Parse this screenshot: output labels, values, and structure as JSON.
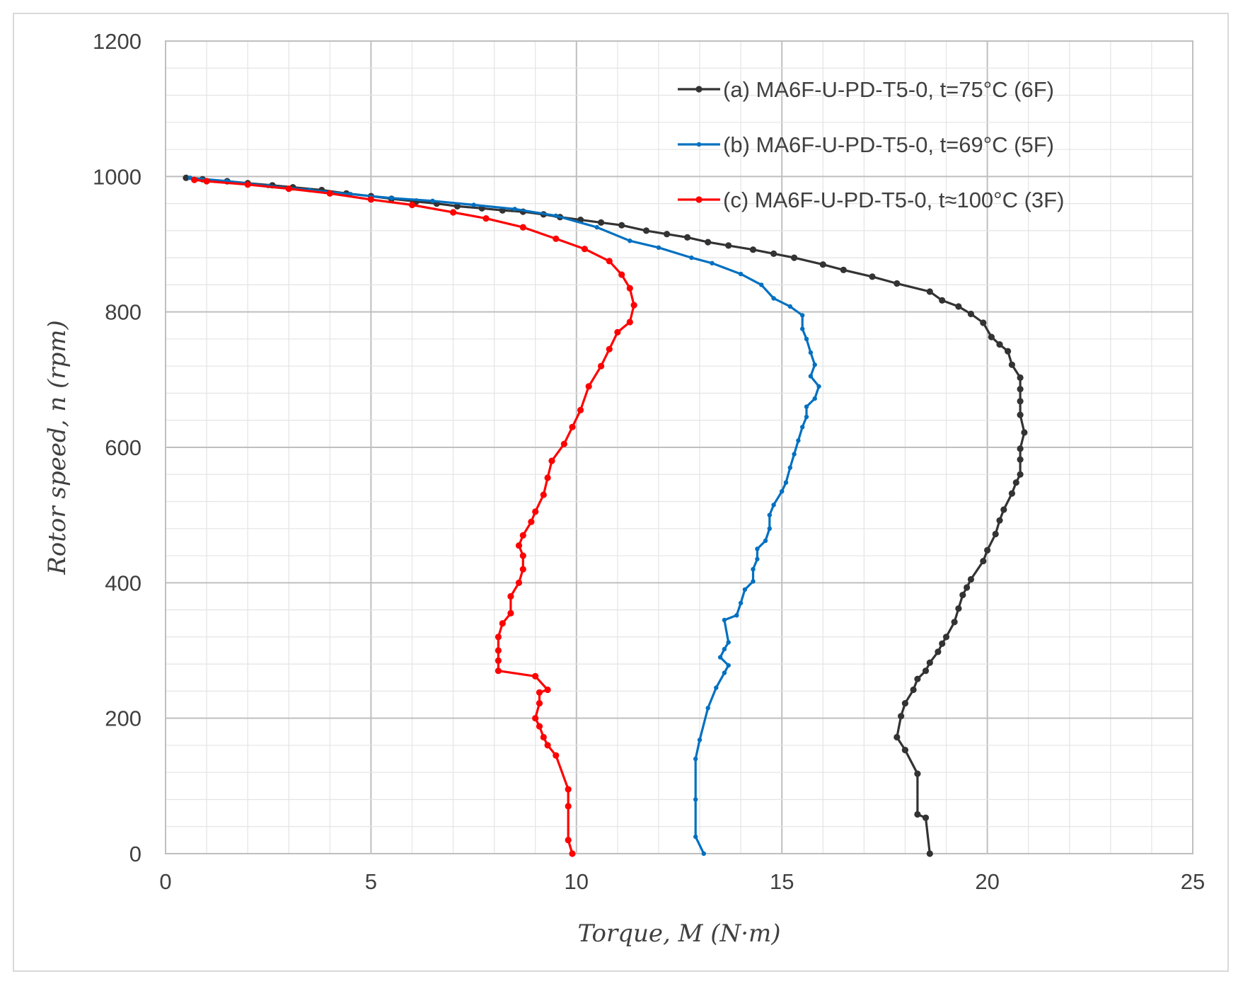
{
  "chart_data": {
    "type": "line",
    "xlabel": "Torque, M (N·m)",
    "ylabel": "Rotor speed, n (rpm)",
    "xlim": [
      0,
      25
    ],
    "ylim": [
      0,
      1200
    ],
    "x_ticks": [
      "0",
      "5",
      "10",
      "15",
      "20",
      "25"
    ],
    "y_ticks": [
      "0",
      "200",
      "400",
      "600",
      "800",
      "1000",
      "1200"
    ],
    "grid": true,
    "legend_position": "top-right",
    "series": [
      {
        "name": "(a) MA6F-U-PD-T5-0, t=75°C (6F)",
        "color": "#333333",
        "points": [
          [
            18.6,
            0
          ],
          [
            18.5,
            53
          ],
          [
            18.3,
            58
          ],
          [
            18.3,
            118
          ],
          [
            18.0,
            153
          ],
          [
            17.8,
            172
          ],
          [
            17.9,
            203
          ],
          [
            18.0,
            222
          ],
          [
            18.2,
            242
          ],
          [
            18.3,
            258
          ],
          [
            18.5,
            270
          ],
          [
            18.6,
            282
          ],
          [
            18.8,
            298
          ],
          [
            18.9,
            310
          ],
          [
            19.0,
            320
          ],
          [
            19.2,
            342
          ],
          [
            19.3,
            362
          ],
          [
            19.4,
            382
          ],
          [
            19.5,
            393
          ],
          [
            19.6,
            405
          ],
          [
            19.9,
            432
          ],
          [
            20.0,
            448
          ],
          [
            20.2,
            472
          ],
          [
            20.3,
            492
          ],
          [
            20.4,
            508
          ],
          [
            20.6,
            532
          ],
          [
            20.7,
            548
          ],
          [
            20.8,
            560
          ],
          [
            20.8,
            582
          ],
          [
            20.8,
            598
          ],
          [
            20.9,
            622
          ],
          [
            20.8,
            648
          ],
          [
            20.8,
            668
          ],
          [
            20.8,
            686
          ],
          [
            20.8,
            703
          ],
          [
            20.6,
            722
          ],
          [
            20.5,
            742
          ],
          [
            20.3,
            752
          ],
          [
            20.1,
            763
          ],
          [
            19.9,
            784
          ],
          [
            19.6,
            797
          ],
          [
            19.3,
            808
          ],
          [
            18.9,
            817
          ],
          [
            18.6,
            830
          ],
          [
            17.8,
            842
          ],
          [
            17.2,
            852
          ],
          [
            16.5,
            862
          ],
          [
            16.0,
            870
          ],
          [
            15.3,
            880
          ],
          [
            14.8,
            886
          ],
          [
            14.3,
            892
          ],
          [
            13.7,
            898
          ],
          [
            13.2,
            903
          ],
          [
            12.7,
            910
          ],
          [
            12.2,
            915
          ],
          [
            11.7,
            920
          ],
          [
            11.1,
            928
          ],
          [
            10.6,
            932
          ],
          [
            10.1,
            936
          ],
          [
            9.6,
            940
          ],
          [
            9.2,
            944
          ],
          [
            8.7,
            948
          ],
          [
            8.2,
            950
          ],
          [
            7.7,
            953
          ],
          [
            7.1,
            956
          ],
          [
            6.6,
            960
          ],
          [
            6.1,
            963
          ],
          [
            5.5,
            967
          ],
          [
            5.0,
            971
          ],
          [
            4.4,
            975
          ],
          [
            3.8,
            980
          ],
          [
            3.1,
            984
          ],
          [
            2.6,
            987
          ],
          [
            2.0,
            990
          ],
          [
            1.5,
            993
          ],
          [
            0.9,
            996
          ],
          [
            0.5,
            998
          ]
        ]
      },
      {
        "name": "(b) MA6F-U-PD-T5-0, t=69°C (5F)",
        "color": "#0070c0",
        "points": [
          [
            13.1,
            0
          ],
          [
            12.9,
            25
          ],
          [
            12.9,
            80
          ],
          [
            12.9,
            140
          ],
          [
            13.0,
            168
          ],
          [
            13.2,
            215
          ],
          [
            13.4,
            245
          ],
          [
            13.6,
            267
          ],
          [
            13.7,
            278
          ],
          [
            13.5,
            290
          ],
          [
            13.6,
            302
          ],
          [
            13.7,
            312
          ],
          [
            13.6,
            345
          ],
          [
            13.9,
            352
          ],
          [
            14.0,
            370
          ],
          [
            14.1,
            390
          ],
          [
            14.3,
            402
          ],
          [
            14.3,
            420
          ],
          [
            14.4,
            435
          ],
          [
            14.4,
            450
          ],
          [
            14.6,
            462
          ],
          [
            14.7,
            480
          ],
          [
            14.7,
            500
          ],
          [
            14.8,
            515
          ],
          [
            15.0,
            535
          ],
          [
            15.1,
            548
          ],
          [
            15.2,
            570
          ],
          [
            15.3,
            590
          ],
          [
            15.4,
            610
          ],
          [
            15.5,
            630
          ],
          [
            15.6,
            645
          ],
          [
            15.6,
            660
          ],
          [
            15.8,
            672
          ],
          [
            15.9,
            690
          ],
          [
            15.7,
            705
          ],
          [
            15.8,
            722
          ],
          [
            15.7,
            740
          ],
          [
            15.6,
            760
          ],
          [
            15.5,
            775
          ],
          [
            15.5,
            795
          ],
          [
            15.2,
            808
          ],
          [
            14.8,
            820
          ],
          [
            14.5,
            840
          ],
          [
            14.0,
            856
          ],
          [
            13.3,
            872
          ],
          [
            12.8,
            880
          ],
          [
            12.0,
            895
          ],
          [
            11.3,
            905
          ],
          [
            10.5,
            925
          ],
          [
            9.5,
            942
          ],
          [
            8.5,
            952
          ],
          [
            7.5,
            958
          ],
          [
            6.5,
            964
          ],
          [
            5.5,
            968
          ],
          [
            4.5,
            974
          ],
          [
            3.5,
            980
          ],
          [
            2.5,
            986
          ],
          [
            1.5,
            993
          ],
          [
            0.6,
            998
          ]
        ]
      },
      {
        "name": "(c) MA6F-U-PD-T5-0,  t≈100°C (3F)",
        "color": "#ff0000",
        "points": [
          [
            9.9,
            0
          ],
          [
            9.8,
            20
          ],
          [
            9.8,
            70
          ],
          [
            9.8,
            95
          ],
          [
            9.5,
            145
          ],
          [
            9.3,
            160
          ],
          [
            9.2,
            172
          ],
          [
            9.1,
            188
          ],
          [
            9.0,
            200
          ],
          [
            9.1,
            222
          ],
          [
            9.1,
            238
          ],
          [
            9.3,
            242
          ],
          [
            9.0,
            262
          ],
          [
            8.1,
            270
          ],
          [
            8.1,
            285
          ],
          [
            8.1,
            300
          ],
          [
            8.1,
            320
          ],
          [
            8.2,
            340
          ],
          [
            8.4,
            355
          ],
          [
            8.4,
            380
          ],
          [
            8.6,
            400
          ],
          [
            8.7,
            420
          ],
          [
            8.7,
            440
          ],
          [
            8.6,
            455
          ],
          [
            8.7,
            470
          ],
          [
            8.9,
            490
          ],
          [
            9.0,
            505
          ],
          [
            9.2,
            530
          ],
          [
            9.3,
            555
          ],
          [
            9.4,
            580
          ],
          [
            9.7,
            605
          ],
          [
            9.9,
            630
          ],
          [
            10.1,
            655
          ],
          [
            10.3,
            690
          ],
          [
            10.6,
            720
          ],
          [
            10.8,
            745
          ],
          [
            11.0,
            770
          ],
          [
            11.3,
            785
          ],
          [
            11.4,
            810
          ],
          [
            11.3,
            835
          ],
          [
            11.1,
            855
          ],
          [
            10.8,
            875
          ],
          [
            10.2,
            893
          ],
          [
            9.5,
            908
          ],
          [
            8.7,
            925
          ],
          [
            7.8,
            938
          ],
          [
            7.0,
            947
          ],
          [
            6.0,
            958
          ],
          [
            5.0,
            966
          ],
          [
            4.0,
            975
          ],
          [
            3.0,
            982
          ],
          [
            2.0,
            988
          ],
          [
            1.0,
            993
          ],
          [
            0.7,
            995
          ]
        ]
      }
    ]
  }
}
